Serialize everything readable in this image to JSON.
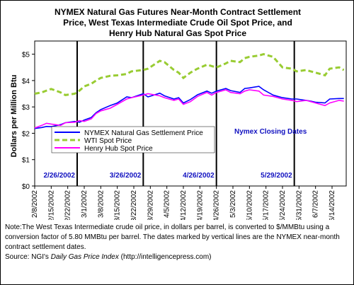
{
  "chart_data": {
    "type": "line",
    "title": [
      "NYMEX Natural Gas Futures Near-Month Contract Settlement",
      "Price, West Texas Intermediate Crude Oil Spot Price, and",
      "Henry Hub Natural Gas Spot Price"
    ],
    "ylabel": "Dollars per Million Btu",
    "ylim": [
      0,
      5.5
    ],
    "yticks": [
      {
        "value": 0,
        "label": "$0"
      },
      {
        "value": 1,
        "label": "$1"
      },
      {
        "value": 2,
        "label": "$2"
      },
      {
        "value": 3,
        "label": "$3"
      },
      {
        "value": 4,
        "label": "$4"
      },
      {
        "value": 5,
        "label": "$5"
      }
    ],
    "x_start": "2/8/2002",
    "x_end": "6/20/2002",
    "xticks": [
      "2/8/2002",
      "2/15/2002",
      "2/22/2002",
      "3/1/2002",
      "3/8/2002",
      "3/15/2002",
      "3/22/2002",
      "3/29/2002",
      "4/5/2002",
      "4/12/2002",
      "4/19/2002",
      "4/26/2002",
      "5/3/2002",
      "5/10/2002",
      "5/17/2002",
      "5/24/2002",
      "5/31/2002",
      "6/7/2002",
      "6/14/2002"
    ],
    "grid": false,
    "legend_position": "lower-left",
    "annotation": "Nymex Closing Dates",
    "markers": [
      {
        "date": "2/26/2002",
        "label": "2/26/2002"
      },
      {
        "date": "3/26/2002",
        "label": "3/26/2002"
      },
      {
        "date": "4/26/2002",
        "label": "4/26/2002"
      },
      {
        "date": "5/29/2002",
        "label": "5/29/2002"
      }
    ],
    "series": [
      {
        "name": "NYMEX Natural Gas Settlement Price",
        "color": "#0000ff",
        "style": "solid",
        "points": [
          [
            "2/8/2002",
            2.18
          ],
          [
            "2/11/2002",
            2.22
          ],
          [
            "2/13/2002",
            2.26
          ],
          [
            "2/15/2002",
            2.25
          ],
          [
            "2/19/2002",
            2.33
          ],
          [
            "2/21/2002",
            2.4
          ],
          [
            "2/25/2002",
            2.45
          ],
          [
            "2/27/2002",
            2.42
          ],
          [
            "3/1/2002",
            2.5
          ],
          [
            "3/4/2002",
            2.6
          ],
          [
            "3/6/2002",
            2.78
          ],
          [
            "3/8/2002",
            2.9
          ],
          [
            "3/12/2002",
            3.05
          ],
          [
            "3/15/2002",
            3.15
          ],
          [
            "3/19/2002",
            3.38
          ],
          [
            "3/21/2002",
            3.35
          ],
          [
            "3/26/2002",
            3.5
          ],
          [
            "3/28/2002",
            3.38
          ],
          [
            "4/2/2002",
            3.52
          ],
          [
            "4/4/2002",
            3.42
          ],
          [
            "4/8/2002",
            3.3
          ],
          [
            "4/10/2002",
            3.35
          ],
          [
            "4/12/2002",
            3.15
          ],
          [
            "4/15/2002",
            3.28
          ],
          [
            "4/18/2002",
            3.46
          ],
          [
            "4/22/2002",
            3.6
          ],
          [
            "4/24/2002",
            3.52
          ],
          [
            "4/26/2002",
            3.6
          ],
          [
            "4/30/2002",
            3.7
          ],
          [
            "5/2/2002",
            3.62
          ],
          [
            "5/6/2002",
            3.55
          ],
          [
            "5/8/2002",
            3.7
          ],
          [
            "5/10/2002",
            3.72
          ],
          [
            "5/14/2002",
            3.78
          ],
          [
            "5/16/2002",
            3.65
          ],
          [
            "5/20/2002",
            3.45
          ],
          [
            "5/22/2002",
            3.4
          ],
          [
            "5/24/2002",
            3.35
          ],
          [
            "5/28/2002",
            3.3
          ],
          [
            "5/30/2002",
            3.3
          ],
          [
            "6/3/2002",
            3.25
          ],
          [
            "6/5/2002",
            3.22
          ],
          [
            "6/7/2002",
            3.18
          ],
          [
            "6/11/2002",
            3.15
          ],
          [
            "6/13/2002",
            3.3
          ],
          [
            "6/17/2002",
            3.32
          ],
          [
            "6/19/2002",
            3.32
          ]
        ]
      },
      {
        "name": "WTI Spot Price",
        "color": "#99cc33",
        "style": "dashed",
        "points": [
          [
            "2/8/2002",
            3.5
          ],
          [
            "2/11/2002",
            3.55
          ],
          [
            "2/13/2002",
            3.62
          ],
          [
            "2/15/2002",
            3.68
          ],
          [
            "2/19/2002",
            3.55
          ],
          [
            "2/21/2002",
            3.45
          ],
          [
            "2/25/2002",
            3.5
          ],
          [
            "2/27/2002",
            3.62
          ],
          [
            "3/1/2002",
            3.78
          ],
          [
            "3/4/2002",
            3.88
          ],
          [
            "3/6/2002",
            4.0
          ],
          [
            "3/8/2002",
            4.1
          ],
          [
            "3/12/2002",
            4.18
          ],
          [
            "3/15/2002",
            4.2
          ],
          [
            "3/19/2002",
            4.25
          ],
          [
            "3/21/2002",
            4.35
          ],
          [
            "3/26/2002",
            4.4
          ],
          [
            "3/28/2002",
            4.45
          ],
          [
            "4/2/2002",
            4.75
          ],
          [
            "4/4/2002",
            4.7
          ],
          [
            "4/8/2002",
            4.4
          ],
          [
            "4/10/2002",
            4.3
          ],
          [
            "4/12/2002",
            4.1
          ],
          [
            "4/15/2002",
            4.3
          ],
          [
            "4/18/2002",
            4.45
          ],
          [
            "4/22/2002",
            4.6
          ],
          [
            "4/24/2002",
            4.55
          ],
          [
            "4/26/2002",
            4.5
          ],
          [
            "4/30/2002",
            4.65
          ],
          [
            "5/2/2002",
            4.75
          ],
          [
            "5/6/2002",
            4.7
          ],
          [
            "5/8/2002",
            4.85
          ],
          [
            "5/10/2002",
            4.9
          ],
          [
            "5/14/2002",
            4.95
          ],
          [
            "5/16/2002",
            5.0
          ],
          [
            "5/20/2002",
            4.9
          ],
          [
            "5/22/2002",
            4.7
          ],
          [
            "5/24/2002",
            4.5
          ],
          [
            "5/28/2002",
            4.45
          ],
          [
            "5/30/2002",
            4.35
          ],
          [
            "6/3/2002",
            4.4
          ],
          [
            "6/5/2002",
            4.35
          ],
          [
            "6/7/2002",
            4.3
          ],
          [
            "6/11/2002",
            4.2
          ],
          [
            "6/13/2002",
            4.45
          ],
          [
            "6/17/2002",
            4.5
          ],
          [
            "6/19/2002",
            4.4
          ]
        ]
      },
      {
        "name": "Henry Hub Spot Price",
        "color": "#ff00ff",
        "style": "solid",
        "points": [
          [
            "2/8/2002",
            2.2
          ],
          [
            "2/11/2002",
            2.3
          ],
          [
            "2/13/2002",
            2.38
          ],
          [
            "2/15/2002",
            2.35
          ],
          [
            "2/19/2002",
            2.3
          ],
          [
            "2/21/2002",
            2.4
          ],
          [
            "2/25/2002",
            2.42
          ],
          [
            "2/27/2002",
            2.48
          ],
          [
            "3/1/2002",
            2.45
          ],
          [
            "3/4/2002",
            2.55
          ],
          [
            "3/6/2002",
            2.75
          ],
          [
            "3/8/2002",
            2.85
          ],
          [
            "3/12/2002",
            2.95
          ],
          [
            "3/15/2002",
            3.1
          ],
          [
            "3/19/2002",
            3.3
          ],
          [
            "3/21/2002",
            3.35
          ],
          [
            "3/26/2002",
            3.45
          ],
          [
            "3/28/2002",
            3.5
          ],
          [
            "4/2/2002",
            3.42
          ],
          [
            "4/4/2002",
            3.35
          ],
          [
            "4/8/2002",
            3.25
          ],
          [
            "4/10/2002",
            3.3
          ],
          [
            "4/12/2002",
            3.1
          ],
          [
            "4/15/2002",
            3.2
          ],
          [
            "4/18/2002",
            3.4
          ],
          [
            "4/22/2002",
            3.55
          ],
          [
            "4/24/2002",
            3.45
          ],
          [
            "4/26/2002",
            3.55
          ],
          [
            "4/30/2002",
            3.65
          ],
          [
            "5/2/2002",
            3.55
          ],
          [
            "5/6/2002",
            3.5
          ],
          [
            "5/8/2002",
            3.6
          ],
          [
            "5/10/2002",
            3.65
          ],
          [
            "5/14/2002",
            3.6
          ],
          [
            "5/16/2002",
            3.45
          ],
          [
            "5/20/2002",
            3.4
          ],
          [
            "5/22/2002",
            3.35
          ],
          [
            "5/24/2002",
            3.3
          ],
          [
            "5/28/2002",
            3.25
          ],
          [
            "5/30/2002",
            3.2
          ],
          [
            "6/3/2002",
            3.25
          ],
          [
            "6/5/2002",
            3.2
          ],
          [
            "6/7/2002",
            3.15
          ],
          [
            "6/11/2002",
            3.05
          ],
          [
            "6/13/2002",
            3.15
          ],
          [
            "6/17/2002",
            3.25
          ],
          [
            "6/19/2002",
            3.22
          ]
        ]
      }
    ]
  },
  "notes": {
    "note_text": "Note:The West Texas Intermediate crude oil price, in dollars per barrel,  is converted to $/MMBtu using a conversion factor of 5.80 MMBtu per barrel.  The dates marked by vertical lines are the NYMEX near-month contract settlement dates.",
    "source_prefix": "Source:  NGI's ",
    "source_title": "Daily Gas Price Index",
    "source_suffix": " (http://intelligencepress.com)"
  }
}
